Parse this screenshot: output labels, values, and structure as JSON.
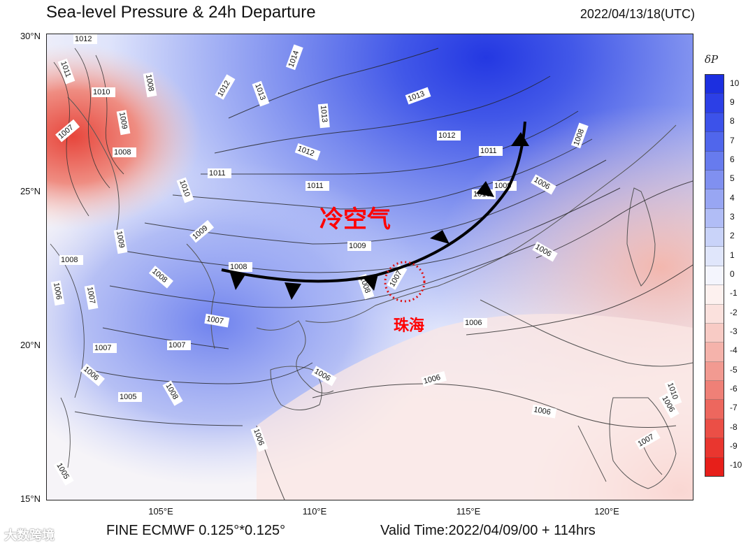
{
  "title": "Sea-level Pressure & 24h Departure",
  "timestamp": "2022/04/13/18(UTC)",
  "latitude_labels": [
    "30°N",
    "25°N",
    "20°N",
    "15°N"
  ],
  "longitude_labels": [
    "105°E",
    "110°E",
    "115°E",
    "120°E"
  ],
  "colorbar": {
    "title": "δP",
    "ticks": [
      "10",
      "9",
      "8",
      "7",
      "6",
      "5",
      "4",
      "3",
      "2",
      "1",
      "0",
      "-1",
      "-2",
      "-3",
      "-4",
      "-5",
      "-6",
      "-7",
      "-8",
      "-9",
      "-10"
    ],
    "colors": [
      "#1c2fe0",
      "#2c3fe6",
      "#3c52ea",
      "#5066ec",
      "#677bee",
      "#8090f0",
      "#98a6f3",
      "#b1bdf6",
      "#c9d3f9",
      "#e0e6fb",
      "#f4f5fd",
      "#fdf1ef",
      "#fbe1dd",
      "#f8cbc5",
      "#f5b3ab",
      "#f29a91",
      "#ef8077",
      "#ed675e",
      "#eb4f46",
      "#e9362f",
      "#e71f1a"
    ]
  },
  "contour_labels": [
    {
      "text": "1012"
    },
    {
      "text": "1011"
    },
    {
      "text": "1010"
    },
    {
      "text": "1007"
    },
    {
      "text": "1009"
    },
    {
      "text": "1008"
    },
    {
      "text": "1014"
    },
    {
      "text": "1012"
    },
    {
      "text": "1013"
    },
    {
      "text": "1008"
    },
    {
      "text": "1013"
    },
    {
      "text": "1013"
    },
    {
      "text": "1012"
    },
    {
      "text": "1012"
    },
    {
      "text": "1011"
    },
    {
      "text": "1011"
    },
    {
      "text": "1011"
    },
    {
      "text": "1010"
    },
    {
      "text": "1010"
    },
    {
      "text": "1009"
    },
    {
      "text": "1009"
    },
    {
      "text": "1009"
    },
    {
      "text": "1009"
    },
    {
      "text": "1006"
    },
    {
      "text": "1008"
    },
    {
      "text": "1008"
    },
    {
      "text": "1008"
    },
    {
      "text": "1008"
    },
    {
      "text": "1006"
    },
    {
      "text": "1007"
    },
    {
      "text": "1007"
    },
    {
      "text": "1007"
    },
    {
      "text": "1007"
    },
    {
      "text": "1006"
    },
    {
      "text": "1005"
    },
    {
      "text": "1008"
    },
    {
      "text": "1006"
    },
    {
      "text": "1006"
    },
    {
      "text": "1006"
    },
    {
      "text": "1006"
    },
    {
      "text": "1006"
    },
    {
      "text": "1006"
    },
    {
      "text": "1007"
    },
    {
      "text": "1005"
    },
    {
      "text": "1010"
    },
    {
      "text": "1008"
    },
    {
      "text": "1007"
    },
    {
      "text": "1006"
    }
  ],
  "annotations": {
    "cold_air": "冷空气",
    "city": "珠海"
  },
  "footer": {
    "source": "FINE ECMWF 0.125°*0.125°",
    "valid_time": "Valid Time:2022/04/09/00 + 114hrs"
  },
  "watermark": "大数跨境",
  "colors": {
    "front": "#000000",
    "annotation_red": "#ff0000"
  }
}
